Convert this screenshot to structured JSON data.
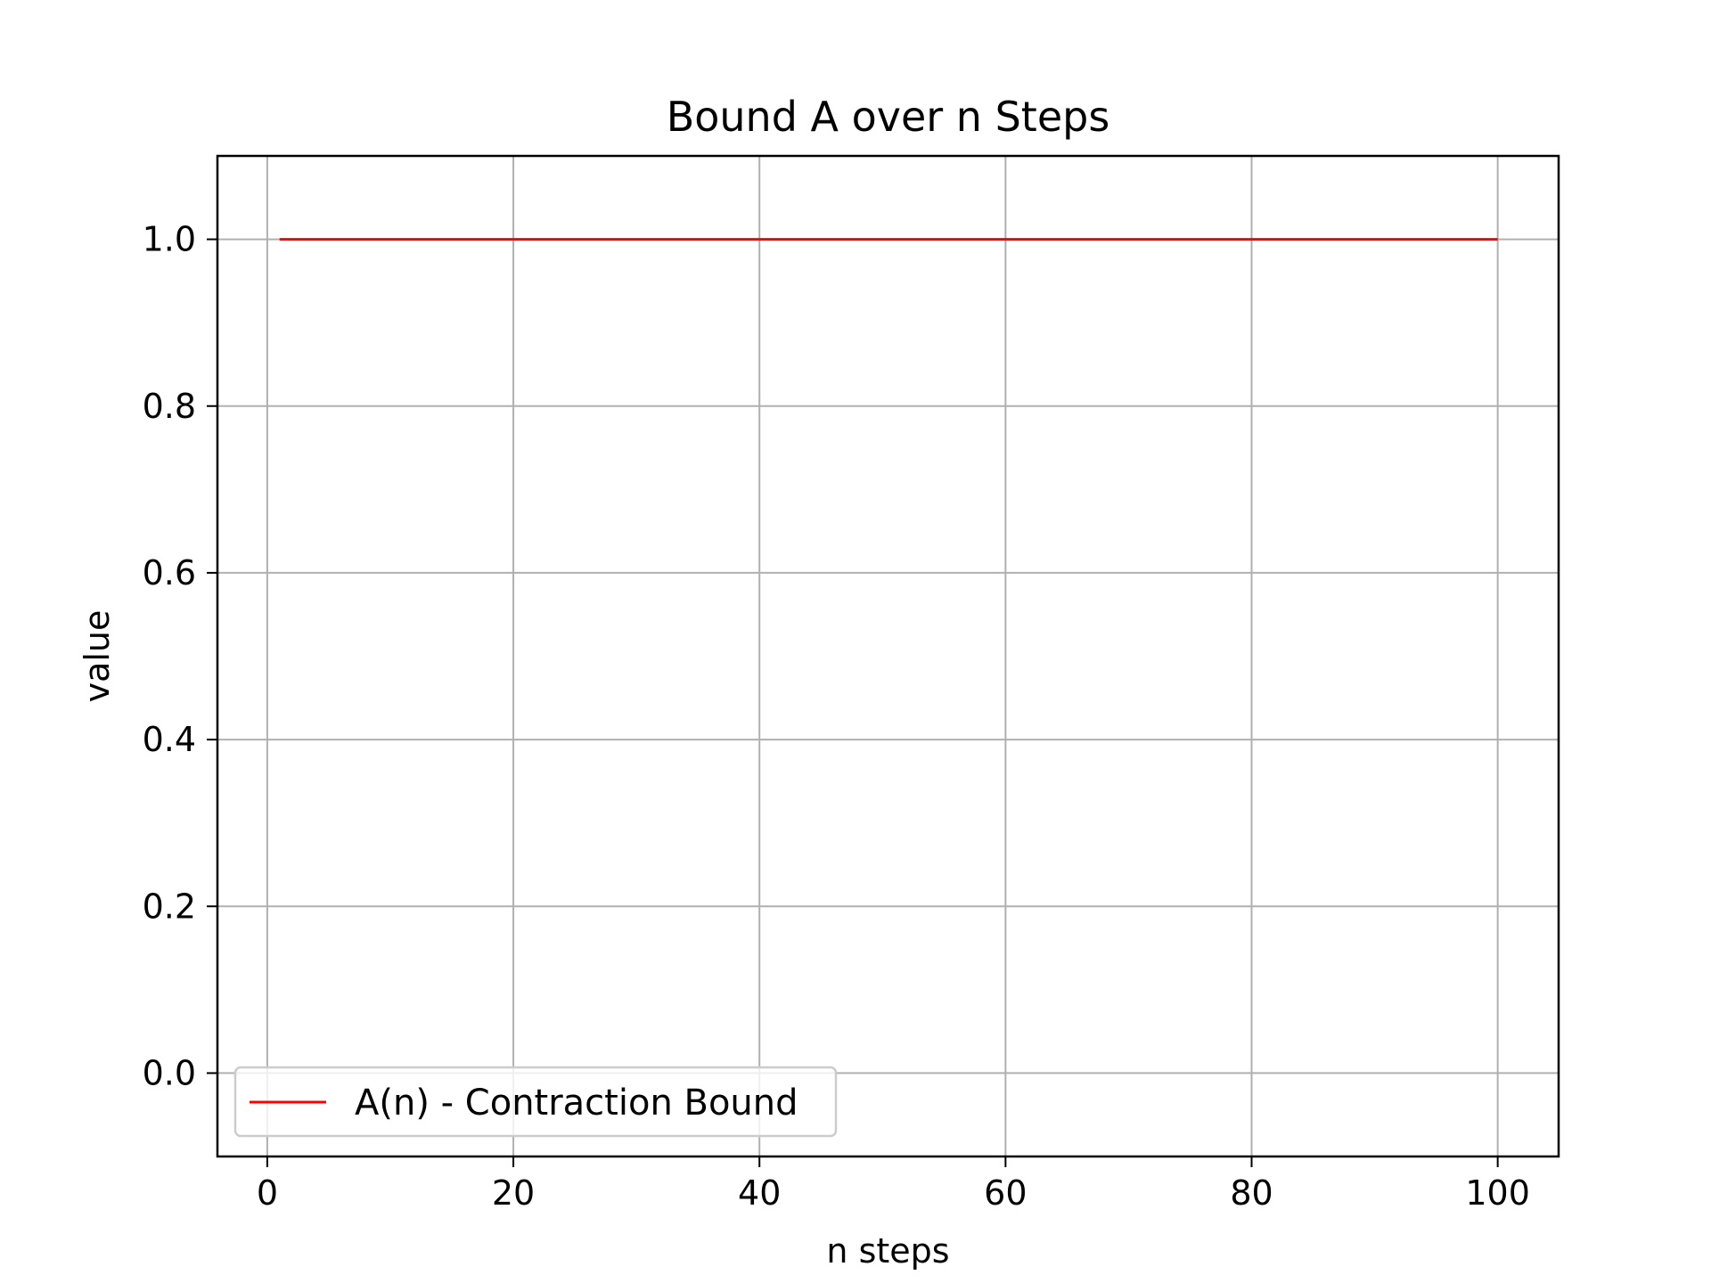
{
  "chart_data": {
    "type": "line",
    "title": "Bound A over n Steps",
    "xlabel": "n steps",
    "ylabel": "value",
    "xlim": [
      -4.05,
      104.95
    ],
    "ylim": [
      -0.1,
      1.1
    ],
    "xticks": [
      0,
      20,
      40,
      60,
      80,
      100
    ],
    "xtick_labels": [
      "0",
      "20",
      "40",
      "60",
      "80",
      "100"
    ],
    "yticks": [
      0.0,
      0.2,
      0.4,
      0.6,
      0.8,
      1.0
    ],
    "ytick_labels": [
      "0.0",
      "0.2",
      "0.4",
      "0.6",
      "0.8",
      "1.0"
    ],
    "grid": true,
    "legend_position": "lower-left",
    "series": [
      {
        "name": "A(n) - Contraction Bound",
        "color": "#ff0000",
        "x": [
          1,
          100
        ],
        "y": [
          1.0,
          1.0
        ]
      }
    ]
  }
}
